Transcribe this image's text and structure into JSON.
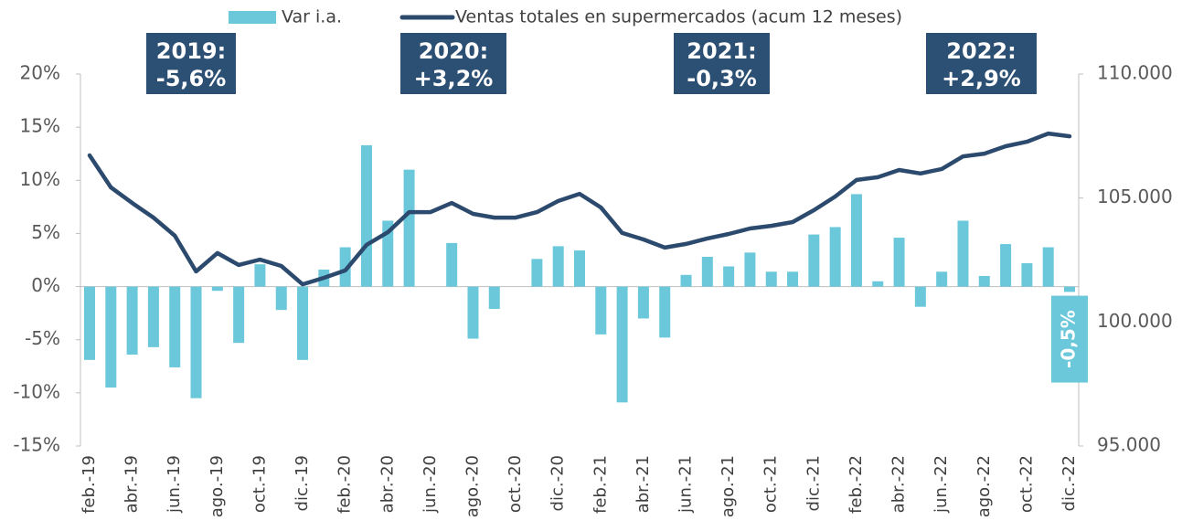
{
  "chart_data": {
    "type": "bar_line",
    "categories": [
      "feb.-19",
      null,
      "abr.-19",
      null,
      "jun.-19",
      null,
      "ago.-19",
      null,
      "oct.-19",
      null,
      "dic.-19",
      null,
      "feb.-20",
      null,
      "abr.-20",
      null,
      "jun.-20",
      null,
      "ago.-20",
      null,
      "oct.-20",
      null,
      "dic.-20",
      null,
      "feb.-21",
      null,
      "abr.-21",
      null,
      "jun.-21",
      null,
      "ago.-21",
      null,
      "oct.-21",
      null,
      "dic.-21",
      null,
      "feb.-22",
      null,
      "abr.-22",
      null,
      "jun.-22",
      null,
      "ago.-22",
      null,
      "oct.-22",
      null,
      "dic.-22"
    ],
    "series": [
      {
        "name": "Var i.a.",
        "color": "#6bc8db",
        "kind": "bar",
        "values": [
          -6.9,
          -9.5,
          -6.4,
          -5.7,
          -7.6,
          -10.5,
          -0.4,
          -5.3,
          2.1,
          -2.2,
          -6.9,
          1.6,
          3.7,
          13.3,
          6.2,
          11.0,
          0,
          4.1,
          -4.9,
          -2.1,
          0,
          2.6,
          3.8,
          3.4,
          -4.5,
          -10.9,
          -3.0,
          -4.8,
          1.1,
          2.8,
          1.9,
          3.2,
          1.4,
          1.4,
          4.9,
          5.6,
          8.7,
          0.5,
          4.6,
          -1.9,
          1.4,
          6.2,
          1.0,
          4.0,
          2.2,
          3.7,
          -0.5
        ],
        "value_labels": [
          null,
          null,
          null,
          null,
          null,
          null,
          null,
          null,
          null,
          null,
          null,
          null,
          null,
          null,
          null,
          null,
          null,
          null,
          null,
          null,
          null,
          null,
          null,
          null,
          null,
          null,
          null,
          null,
          null,
          null,
          null,
          null,
          null,
          null,
          null,
          null,
          null,
          null,
          null,
          null,
          null,
          null,
          null,
          null,
          null,
          null,
          "-0,5%"
        ]
      },
      {
        "name": "Ventas totales en supermercados (acum 12 meses)",
        "color": "#2c4a6e",
        "kind": "line",
        "axis": "y2",
        "values": [
          106720,
          105430,
          104800,
          104210,
          103480,
          102040,
          102780,
          102300,
          102520,
          102260,
          101520,
          101780,
          102080,
          103110,
          103620,
          104430,
          104430,
          104800,
          104360,
          104210,
          104210,
          104430,
          104880,
          105170,
          104620,
          103590,
          103330,
          103000,
          103150,
          103370,
          103550,
          103770,
          103880,
          104030,
          104510,
          105060,
          105730,
          105840,
          106130,
          105990,
          106170,
          106680,
          106790,
          107090,
          107270,
          107600,
          107490
        ]
      }
    ],
    "ylim": [
      -15,
      20
    ],
    "yticks": [
      {
        "value": -15,
        "label": "-15%"
      },
      {
        "value": -10,
        "label": "-10%"
      },
      {
        "value": -5,
        "label": "-5%"
      },
      {
        "value": 0,
        "label": "0%"
      },
      {
        "value": 5,
        "label": "5%"
      },
      {
        "value": 10,
        "label": "10%"
      },
      {
        "value": 15,
        "label": "15%"
      },
      {
        "value": 20,
        "label": "20%"
      }
    ],
    "y2lim": [
      95000,
      110000
    ],
    "y2ticks": [
      {
        "value": 95000,
        "label": "95.000"
      },
      {
        "value": 100000,
        "label": "100.000"
      },
      {
        "value": 105000,
        "label": "105.000"
      },
      {
        "value": 110000,
        "label": "110.000"
      }
    ],
    "annotations": [
      {
        "lines": [
          "2019:",
          "-5,6%"
        ]
      },
      {
        "lines": [
          "2020:",
          "+3,2%"
        ]
      },
      {
        "lines": [
          "2021:",
          "-0,3%"
        ]
      },
      {
        "lines": [
          "2022:",
          "+2,9%"
        ]
      }
    ],
    "legend": "top",
    "annotation_color": "#2c4f74"
  }
}
